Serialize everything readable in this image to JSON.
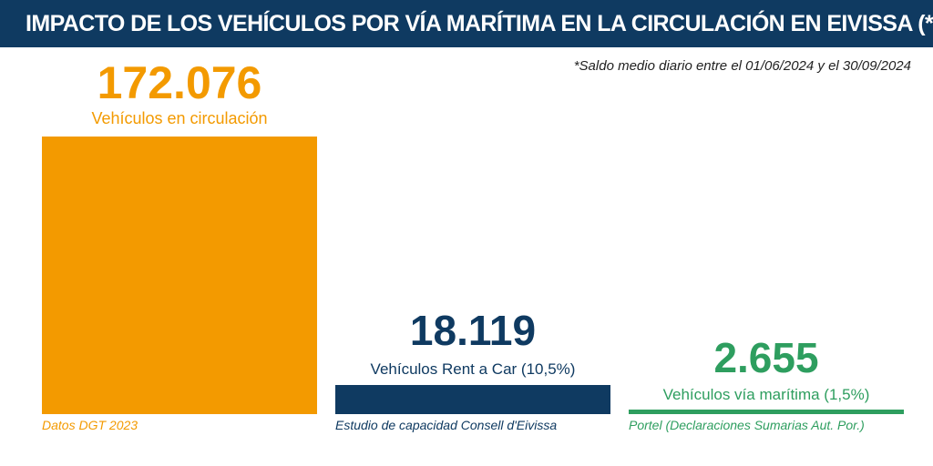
{
  "header": {
    "title": "IMPACTO DE LOS VEHÍCULOS POR VÍA MARÍTIMA EN LA CIRCULACIÓN EN EIVISSA (*)"
  },
  "subtitle": "*Saldo medio diario entre el 01/06/2024 y el 30/09/2024",
  "colors": {
    "header_bg": "#0f3a61",
    "orange": "#f39a00",
    "navy": "#0f3a61",
    "green": "#2e9e5f"
  },
  "chart_data": {
    "type": "bar",
    "title": "IMPACTO DE LOS VEHÍCULOS POR VÍA MARÍTIMA EN LA CIRCULACIÓN EN EIVISSA (*)",
    "note": "*Saldo medio diario entre el 01/06/2024 y el 30/09/2024",
    "categories": [
      "Vehículos en circulación",
      "Vehículos Rent a Car (10,5%)",
      "Vehículos vía marítima (1,5%)"
    ],
    "values": [
      172076,
      18119,
      2655
    ],
    "value_labels": [
      "172.076",
      "18.119",
      "2.655"
    ],
    "sources": [
      "Datos DGT 2023",
      "Estudio de capacidad Consell d'Eivissa",
      "Portel (Declaraciones Sumarias Aut. Por.)"
    ],
    "ylim": [
      0,
      172076
    ]
  }
}
